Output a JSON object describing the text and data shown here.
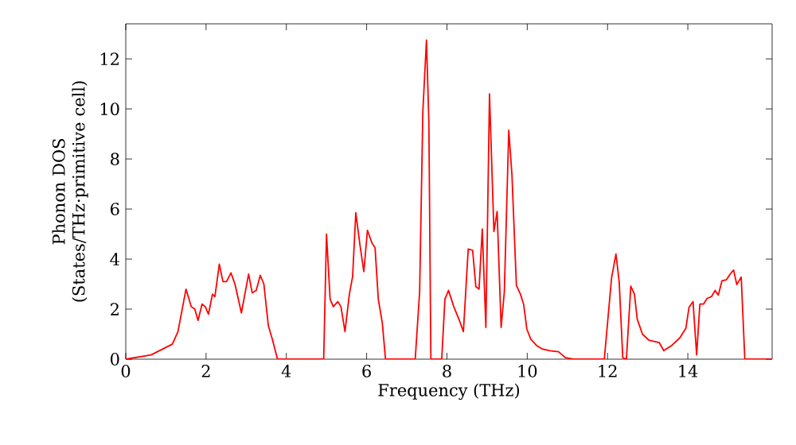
{
  "chart_data": {
    "type": "line",
    "xlabel": "Frequency (THz)",
    "ylabel": "Phonon DOS (States/THz·primitive cell)",
    "x": [
      0,
      0.63,
      1.16,
      1.3,
      1.5,
      1.63,
      1.72,
      1.8,
      1.9,
      1.98,
      2.06,
      2.16,
      2.22,
      2.33,
      2.42,
      2.51,
      2.62,
      2.72,
      2.88,
      3.06,
      3.15,
      3.25,
      3.35,
      3.44,
      3.55,
      3.65,
      3.78,
      4.93,
      5.0,
      5.09,
      5.17,
      5.28,
      5.36,
      5.46,
      5.57,
      5.65,
      5.73,
      5.83,
      5.93,
      6.02,
      6.13,
      6.21,
      6.29,
      6.39,
      6.47,
      7.21,
      7.32,
      7.4,
      7.49,
      7.55,
      7.6,
      7.87,
      7.95,
      8.04,
      8.17,
      8.31,
      8.41,
      8.53,
      8.64,
      8.72,
      8.8,
      8.88,
      8.97,
      9.06,
      9.17,
      9.25,
      9.35,
      9.43,
      9.54,
      9.62,
      9.73,
      9.83,
      9.91,
      9.99,
      10.09,
      10.23,
      10.36,
      10.56,
      10.78,
      10.95,
      11.15,
      11.92,
      12.1,
      12.21,
      12.29,
      12.38,
      12.47,
      12.58,
      12.67,
      12.74,
      12.87,
      13.03,
      13.29,
      13.4,
      13.6,
      13.8,
      13.95,
      14.03,
      14.13,
      14.22,
      14.3,
      14.39,
      14.48,
      14.59,
      14.68,
      14.76,
      14.85,
      14.96,
      15.05,
      15.14,
      15.22,
      15.33,
      15.42,
      16.1
    ],
    "series": [
      {
        "color": "#ff0000",
        "values": [
          0,
          0.17,
          0.6,
          1.1,
          2.8,
          2.1,
          2.0,
          1.55,
          2.2,
          2.1,
          1.8,
          2.6,
          2.5,
          3.8,
          3.1,
          3.1,
          3.45,
          3.0,
          1.85,
          3.4,
          2.65,
          2.75,
          3.35,
          3.0,
          1.35,
          0.8,
          0,
          0,
          5.0,
          2.4,
          2.1,
          2.3,
          2.1,
          1.1,
          2.6,
          3.3,
          5.85,
          4.6,
          3.5,
          5.15,
          4.65,
          4.45,
          2.4,
          1.45,
          0,
          0,
          2.7,
          9.9,
          12.75,
          9.5,
          0,
          0,
          2.4,
          2.75,
          2.1,
          1.55,
          1.1,
          4.4,
          4.35,
          2.9,
          2.8,
          5.2,
          1.27,
          10.6,
          5.1,
          5.9,
          1.27,
          2.7,
          9.15,
          7.35,
          2.95,
          2.6,
          2.2,
          1.2,
          0.8,
          0.55,
          0.42,
          0.34,
          0.3,
          0.06,
          0,
          0,
          3.24,
          4.2,
          3.1,
          0.06,
          0,
          2.92,
          2.6,
          1.6,
          1.0,
          0.76,
          0.66,
          0.34,
          0.55,
          0.85,
          1.23,
          2.07,
          2.3,
          0.17,
          2.2,
          2.2,
          2.43,
          2.5,
          2.75,
          2.56,
          3.13,
          3.17,
          3.39,
          3.56,
          2.98,
          3.28,
          0,
          0
        ]
      }
    ],
    "xlim": [
      0,
      16.1
    ],
    "ylim": [
      0,
      13.4
    ],
    "xticks": [
      0,
      2,
      4,
      6,
      8,
      10,
      12,
      14
    ],
    "yticks": [
      0,
      2,
      4,
      6,
      8,
      10,
      12
    ],
    "grid": false,
    "marker": "none",
    "line_style": "solid"
  }
}
